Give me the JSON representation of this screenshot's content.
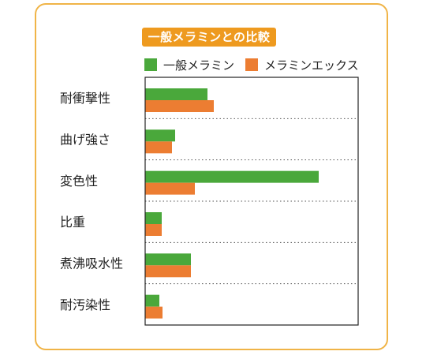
{
  "title": "一般メラミンとの比較",
  "colors": {
    "frame": "#f0b447",
    "badge": "#ee9a1f",
    "series1": "#4aa83b",
    "series2": "#ec7d32"
  },
  "chart_data": {
    "type": "bar",
    "orientation": "horizontal",
    "categories": [
      "耐衝撃性",
      "曲げ強さ",
      "変色性",
      "比重",
      "煮沸吸水性",
      "耐汚染性"
    ],
    "series": [
      {
        "name": "一般メラミン",
        "values": [
          79,
          38,
          220,
          21,
          58,
          18
        ]
      },
      {
        "name": "メラミンエックス",
        "values": [
          87,
          34,
          63,
          21,
          58,
          22
        ]
      }
    ],
    "xlim": [
      0,
      270
    ],
    "xlabel": "",
    "ylabel": "",
    "grid": "dotted separators between categories",
    "legend": "top"
  }
}
